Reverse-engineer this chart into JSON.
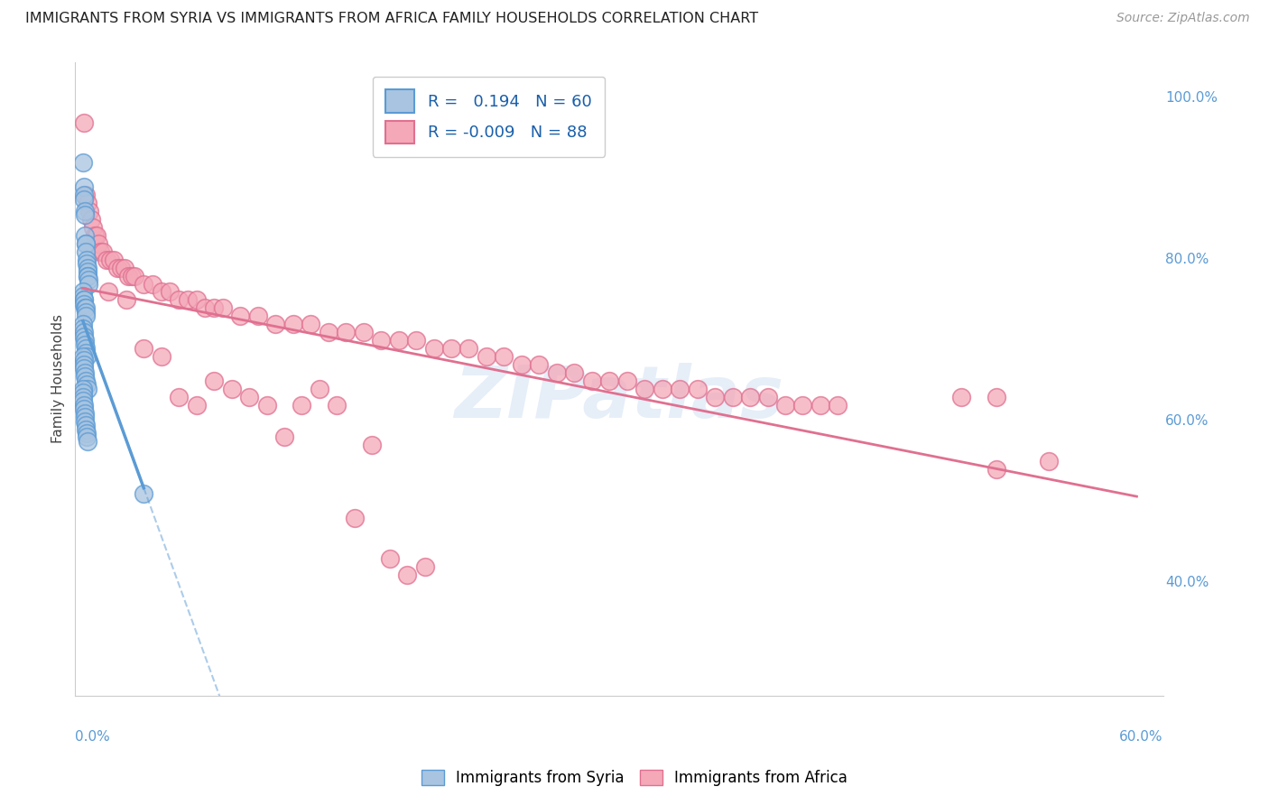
{
  "title": "IMMIGRANTS FROM SYRIA VS IMMIGRANTS FROM AFRICA FAMILY HOUSEHOLDS CORRELATION CHART",
  "source": "Source: ZipAtlas.com",
  "ylabel": "Family Households",
  "watermark": "ZIPatlas",
  "R_syria": 0.194,
  "N_syria": 60,
  "R_africa": -0.009,
  "N_africa": 88,
  "color_syria_fill": "#a8c4e0",
  "color_syria_edge": "#5b9bd5",
  "color_africa_fill": "#f4a8b8",
  "color_africa_edge": "#e07090",
  "color_syria_regline": "#5b9bd5",
  "color_africa_regline": "#e07090",
  "color_axis_labels": "#5b9bd5",
  "color_grid": "#d0d8e8",
  "xmin": -0.004,
  "xmax": 0.615,
  "ymin": 0.26,
  "ymax": 1.045,
  "yticks": [
    0.4,
    0.6,
    0.8,
    1.0
  ],
  "ytick_labels": [
    "40.0%",
    "60.0%",
    "80.0%",
    "100.0%"
  ],
  "xtick_left_label": "0.0%",
  "xtick_right_label": "60.0%",
  "syria_x": [
    0.0005,
    0.0008,
    0.001,
    0.0012,
    0.0014,
    0.0015,
    0.0016,
    0.0018,
    0.002,
    0.0022,
    0.0024,
    0.0025,
    0.0028,
    0.003,
    0.003,
    0.0032,
    0.0033,
    0.0035,
    0.0004,
    0.0006,
    0.0008,
    0.001,
    0.0012,
    0.0015,
    0.0018,
    0.002,
    0.0022,
    0.0005,
    0.0007,
    0.0009,
    0.0011,
    0.0013,
    0.0016,
    0.0019,
    0.0021,
    0.0023,
    0.0006,
    0.0008,
    0.001,
    0.0012,
    0.0014,
    0.0017,
    0.002,
    0.0025,
    0.003,
    0.0004,
    0.0005,
    0.0006,
    0.0007,
    0.0009,
    0.0011,
    0.0013,
    0.0015,
    0.0017,
    0.0019,
    0.0021,
    0.0023,
    0.0026,
    0.003,
    0.035
  ],
  "syria_y": [
    0.92,
    0.89,
    0.88,
    0.875,
    0.86,
    0.855,
    0.83,
    0.82,
    0.82,
    0.81,
    0.8,
    0.795,
    0.79,
    0.785,
    0.78,
    0.78,
    0.775,
    0.77,
    0.76,
    0.755,
    0.75,
    0.75,
    0.745,
    0.74,
    0.74,
    0.735,
    0.73,
    0.72,
    0.715,
    0.71,
    0.705,
    0.7,
    0.695,
    0.69,
    0.685,
    0.68,
    0.68,
    0.675,
    0.67,
    0.665,
    0.66,
    0.655,
    0.65,
    0.645,
    0.64,
    0.64,
    0.635,
    0.63,
    0.625,
    0.62,
    0.615,
    0.61,
    0.605,
    0.6,
    0.595,
    0.59,
    0.585,
    0.58,
    0.575,
    0.51
  ],
  "africa_x": [
    0.001,
    0.002,
    0.003,
    0.004,
    0.005,
    0.006,
    0.007,
    0.008,
    0.009,
    0.01,
    0.012,
    0.014,
    0.016,
    0.018,
    0.02,
    0.022,
    0.024,
    0.026,
    0.028,
    0.03,
    0.035,
    0.04,
    0.045,
    0.05,
    0.055,
    0.06,
    0.065,
    0.07,
    0.075,
    0.08,
    0.09,
    0.1,
    0.11,
    0.12,
    0.13,
    0.14,
    0.15,
    0.16,
    0.17,
    0.18,
    0.19,
    0.2,
    0.21,
    0.22,
    0.23,
    0.24,
    0.25,
    0.26,
    0.27,
    0.28,
    0.29,
    0.3,
    0.31,
    0.32,
    0.33,
    0.34,
    0.35,
    0.36,
    0.37,
    0.38,
    0.39,
    0.4,
    0.41,
    0.42,
    0.43,
    0.5,
    0.52,
    0.55,
    0.015,
    0.025,
    0.035,
    0.045,
    0.055,
    0.065,
    0.075,
    0.085,
    0.095,
    0.105,
    0.115,
    0.125,
    0.135,
    0.145,
    0.155,
    0.165,
    0.175,
    0.185,
    0.195,
    0.52
  ],
  "africa_y": [
    0.97,
    0.88,
    0.87,
    0.86,
    0.85,
    0.84,
    0.83,
    0.83,
    0.82,
    0.81,
    0.81,
    0.8,
    0.8,
    0.8,
    0.79,
    0.79,
    0.79,
    0.78,
    0.78,
    0.78,
    0.77,
    0.77,
    0.76,
    0.76,
    0.75,
    0.75,
    0.75,
    0.74,
    0.74,
    0.74,
    0.73,
    0.73,
    0.72,
    0.72,
    0.72,
    0.71,
    0.71,
    0.71,
    0.7,
    0.7,
    0.7,
    0.69,
    0.69,
    0.69,
    0.68,
    0.68,
    0.67,
    0.67,
    0.66,
    0.66,
    0.65,
    0.65,
    0.65,
    0.64,
    0.64,
    0.64,
    0.64,
    0.63,
    0.63,
    0.63,
    0.63,
    0.62,
    0.62,
    0.62,
    0.62,
    0.63,
    0.63,
    0.55,
    0.76,
    0.75,
    0.69,
    0.68,
    0.63,
    0.62,
    0.65,
    0.64,
    0.63,
    0.62,
    0.58,
    0.62,
    0.64,
    0.62,
    0.48,
    0.57,
    0.43,
    0.41,
    0.42,
    0.54
  ]
}
